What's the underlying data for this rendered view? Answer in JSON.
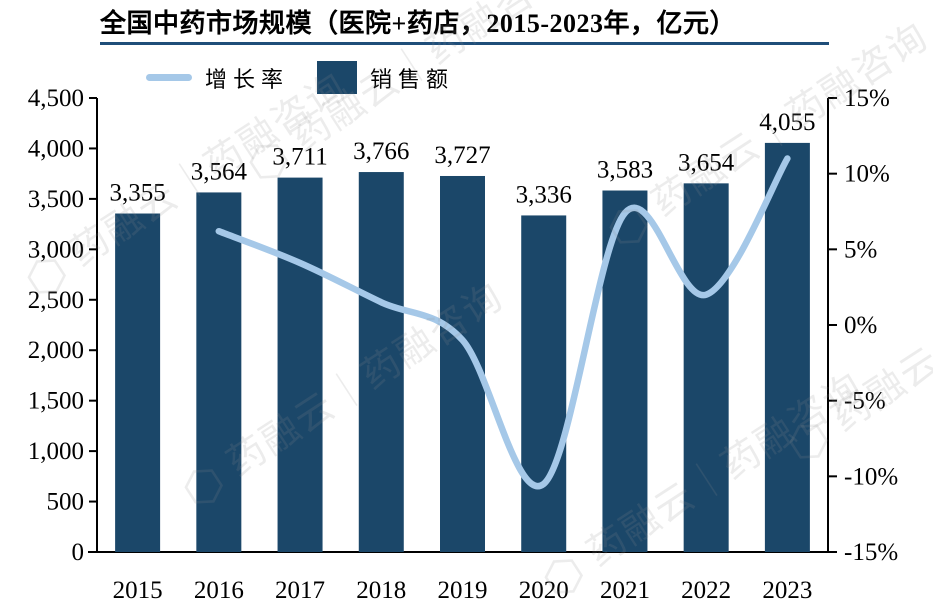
{
  "title": "全国中药市场规模（医院+药店，2015-2023年，亿元）",
  "legend": {
    "items": [
      {
        "label": "增长率",
        "swatch": "line",
        "color": "#A5C8E8"
      },
      {
        "label": "销售额",
        "swatch": "box",
        "color": "#1B4769"
      }
    ]
  },
  "watermark": {
    "text": "药融云｜药融咨询"
  },
  "icons": {
    "watermark_logo": "⬡"
  },
  "colors": {
    "bar": "#1B4769",
    "line": "#A5C8E8",
    "title_underline": "#1F4E79",
    "axis": "#000000"
  },
  "chart_data": {
    "type": "bar",
    "title": "全国中药市场规模（医院+药店，2015-2023年，亿元）",
    "categories": [
      "2015",
      "2016",
      "2017",
      "2018",
      "2019",
      "2020",
      "2021",
      "2022",
      "2023"
    ],
    "series": [
      {
        "name": "销售额",
        "type": "bar",
        "axis": "left",
        "color": "#1B4769",
        "values": [
          3355,
          3564,
          3711,
          3766,
          3727,
          3336,
          3583,
          3654,
          4055
        ],
        "labels": [
          "3,355",
          "3,564",
          "3,711",
          "3,766",
          "3,727",
          "3,336",
          "3,583",
          "3,654",
          "4,055"
        ]
      },
      {
        "name": "增长率",
        "type": "line",
        "axis": "right",
        "color": "#A5C8E8",
        "start_category": "2016",
        "values_pct": [
          6.2,
          4.1,
          1.5,
          -1.0,
          -10.5,
          7.4,
          2.0,
          11.0
        ]
      }
    ],
    "left_axis": {
      "min": 0,
      "max": 4500,
      "step": 500,
      "tick_labels": [
        "4,500",
        "4,000",
        "3,500",
        "3,000",
        "2,500",
        "2,000",
        "1,500",
        "1,000",
        "500",
        "0"
      ]
    },
    "right_axis": {
      "min": -15,
      "max": 15,
      "step": 5,
      "tick_labels": [
        "15%",
        "10%",
        "5%",
        "0%",
        "-5%",
        "-10%",
        "-15%"
      ]
    },
    "grid": false,
    "legend_position": "top-left"
  }
}
